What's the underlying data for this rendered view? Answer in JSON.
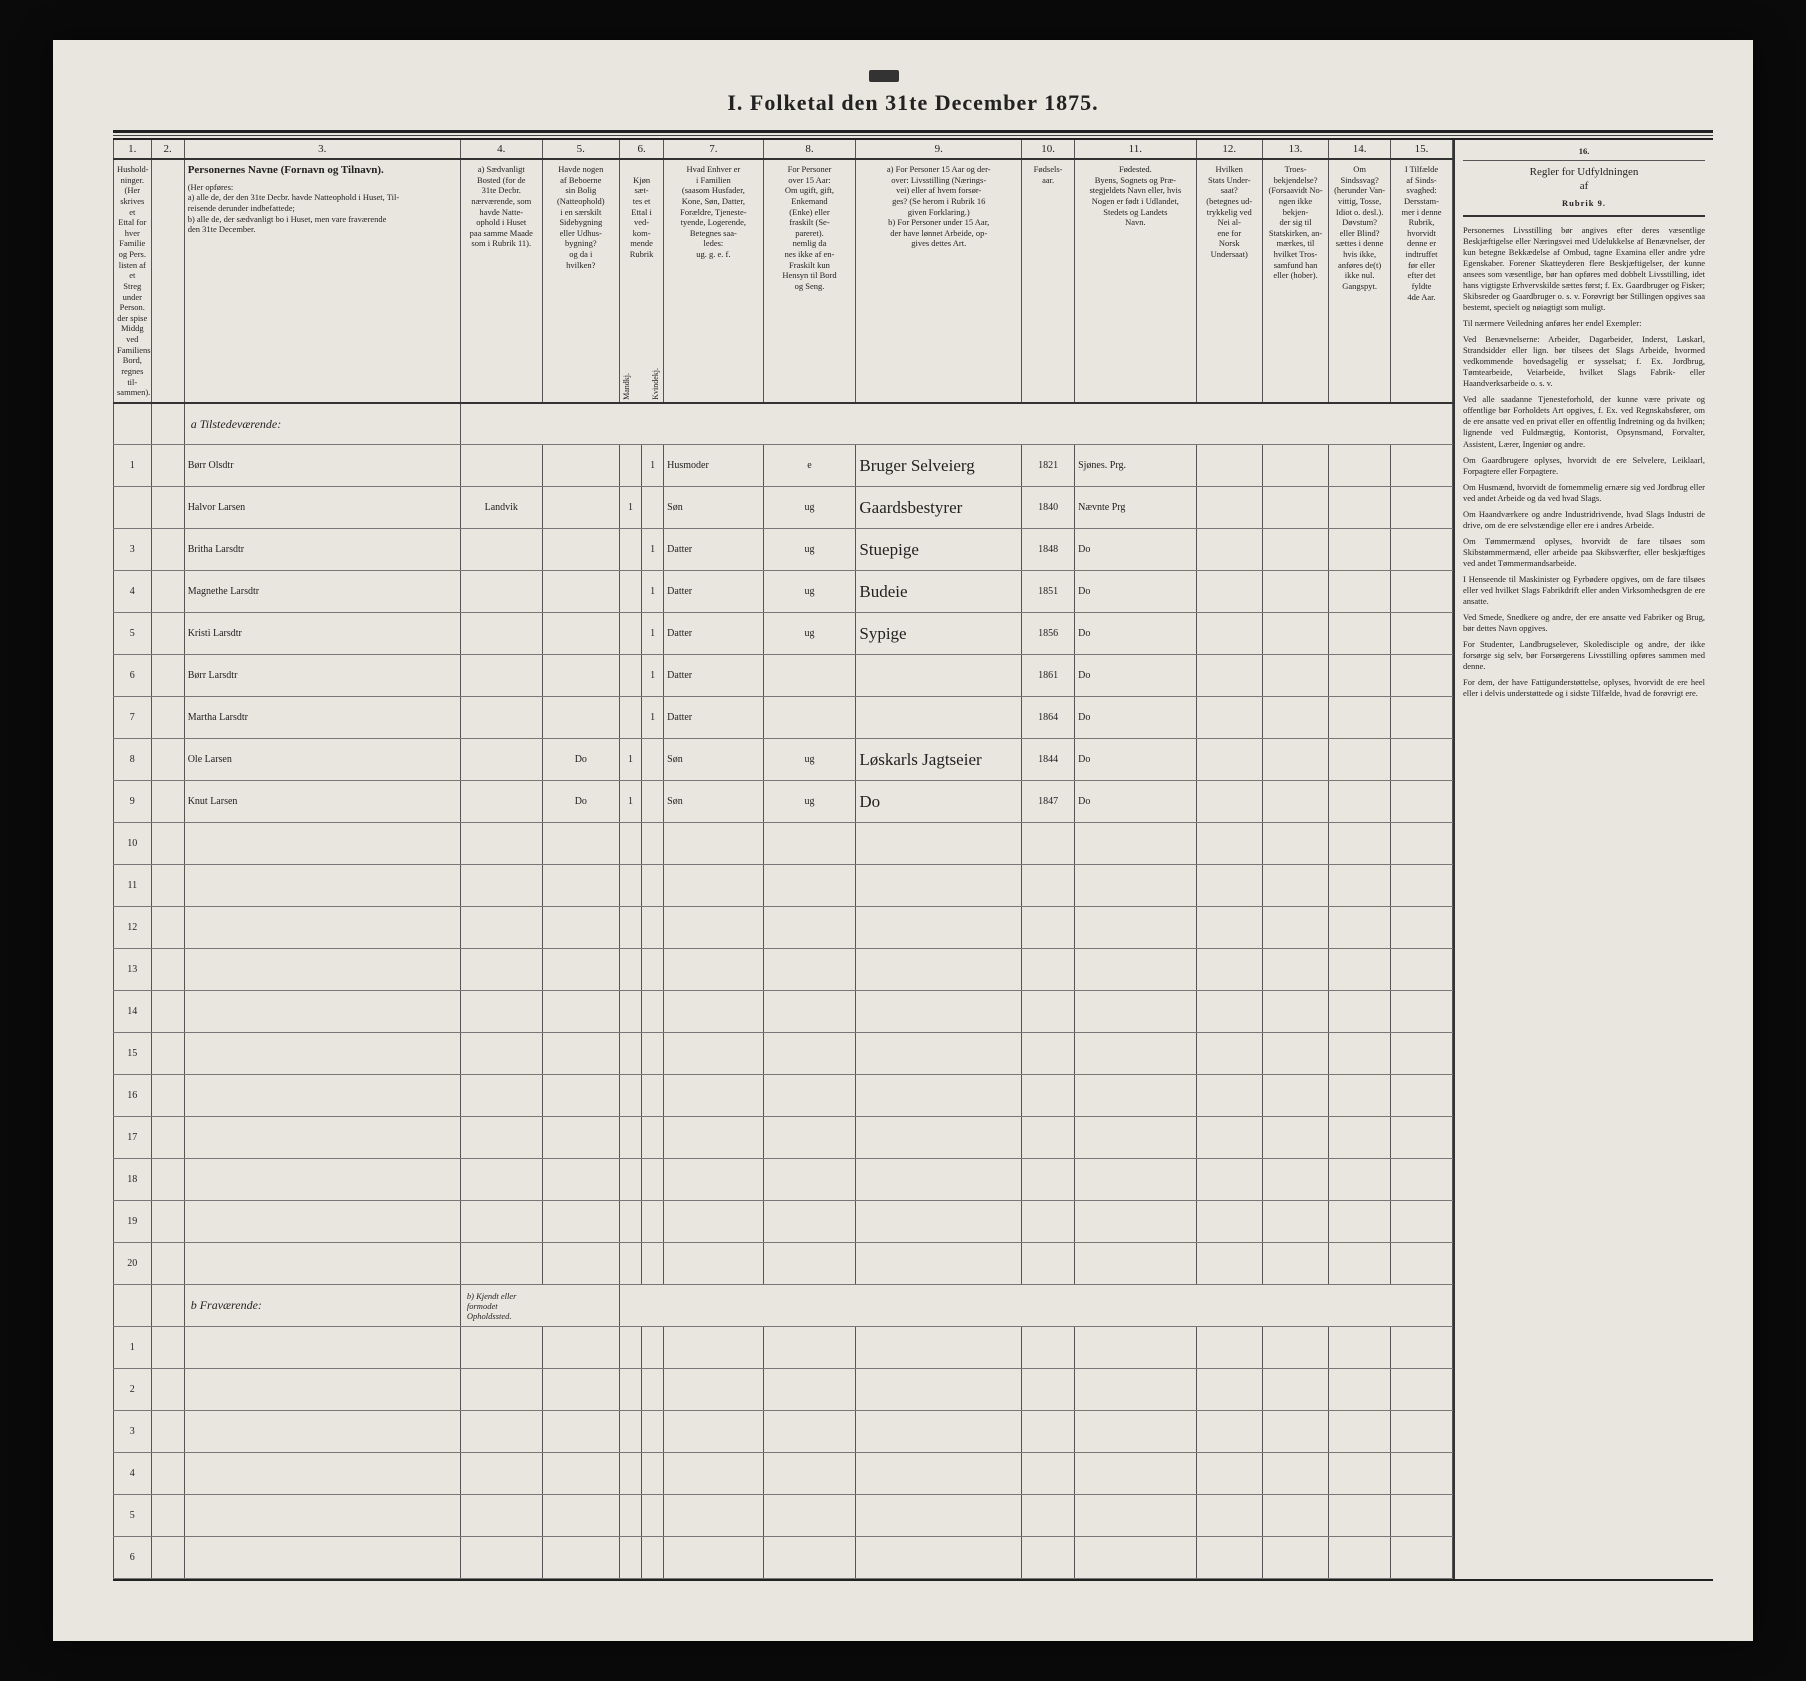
{
  "title": "I. Folketal den 31te December 1875.",
  "colnums": [
    "1.",
    "2.",
    "3.",
    "4.",
    "5.",
    "6.",
    "",
    "7.",
    "8.",
    "9.",
    "10.",
    "11.",
    "12.",
    "13.",
    "14.",
    "15."
  ],
  "headers": {
    "c1": "Hushold-\nninger.\n(Her skrives et\nEttal for hver\nFamilie og Pers.\nlisten af et\nStreg under\nPerson.\nder spise Middg\nved Familiens\nBord, regnes til-\nsammen).",
    "c2": "",
    "c3_title": "Personernes Navne (Fornavn og Tilnavn).",
    "c3_body": "(Her opføres:\na) alle de, der den 31te Decbr. havde Natteophold i Huset, Til-\nreisende derunder indbefattede;\nb) alle de, der sædvanligt bo i Huset, men vare fraværende\nden 31te December.",
    "c4": "a) Sædvanligt\nBosted (for de\n31te Decbr.\nnærværende, som\nhavde Natte-\nophold i Huset\npaa samme Maade\nsom i Rubrik 11).",
    "c5": "Havde nogen\naf Beboerne\nsin Bolig\n(Natteophold)\ni en særskilt\nSidebygning\neller Udhus-\nbygning?\nog da i\nhvilken?",
    "c6": "Kjøn\nsæt-\ntes et\nEttal i\nved-\nkom-\nmende\nRubrik",
    "c6a": "Mandkj.",
    "c6b": "Kvindekj.",
    "c7": "Hvad Enhver er\ni Familien\n(saasom Husfader,\nKone, Søn, Datter,\nForældre, Tjeneste-\ntyende, Logerende,\nBetegnes saa-\nledes:\nug. g. e. f.",
    "c8": "For Personer\nover 15 Aar:\nOm ugift, gift,\nEnkemand\n(Enke) eller\nfraskilt (Se-\npareret).\nnemlig da\nnes ikke af en-\nFraskilt kun\nHensyn til Bord\nog Seng.",
    "c9": "a) For Personer 15 Aar og der-\nover: Livsstilling (Nærings-\nvei) eller af hvem forsør-\nges? (Se herom i Rubrik 16\ngiven Forklaring.)\nb) For Personer under 15 Aar,\nder have lønnet Arbeide, op-\ngives dettes Art.",
    "c10": "Fødsels-\naar.",
    "c11": "Fødested.\nByens, Sognets og Præ-\nstegjeldets Navn eller, hvis\nNogen er født i Udlandet,\nStedets og Landets\nNavn.",
    "c12": "Hvilken\nStats Under-\nsaat?\n(betegnes ud-\ntrykkelig ved\nNei al-\nene for\nNorsk\nUndersaat)",
    "c13": "Troes-\nbekjendelse?\n(Forsaavidt No-\nngen ikke bekjen-\nder sig til\nStatskirken, an-\nmærkes, til\nhvilket Tros-\nsamfund han\neller (hober).",
    "c14": "Om\nSindssvag?\n(herunder Van-\nvittig, Tosse,\nIdiot o. desl.).\nDøvstum?\neller Blind?\nsættes i denne\nhvis ikke,\nanføres de(t)\nikke nul.\nGangspyt.",
    "c15": "I Tilfælde\naf Sinds-\nsvaghed:\nDersstam-\nmer i denne\nRubrik,\nhvorvidt\ndenne er\nindtruffet\nfør eller\nefter det\nfyldte\n4de Aar.",
    "c4b": "b) Kjendt eller\nformodet\nOpholdssted."
  },
  "section_a": "a Tilstedeværende:",
  "section_b": "b Fraværende:",
  "rows_a": [
    {
      "n": "1",
      "name": "Børr Olsdtr",
      "c4": "",
      "c5": "",
      "m": "",
      "k": "1",
      "fam": "Husmoder",
      "stat": "e",
      "liv": "Bruger Selveierg",
      "aar": "1821",
      "sted": "Sjønes. Prg.",
      "u": "",
      "t": "",
      "s": "",
      "i": ""
    },
    {
      "n": "",
      "name": "Halvor Larsen",
      "c4": "Landvik",
      "c5": "",
      "m": "1",
      "k": "",
      "fam": "Søn",
      "stat": "ug",
      "liv": "Gaardsbestyrer",
      "aar": "1840",
      "sted": "Nævnte Prg",
      "u": "",
      "t": "",
      "s": "",
      "i": ""
    },
    {
      "n": "3",
      "name": "Britha Larsdtr",
      "c4": "",
      "c5": "",
      "m": "",
      "k": "1",
      "fam": "Datter",
      "stat": "ug",
      "liv": "Stuepige",
      "aar": "1848",
      "sted": "Do",
      "u": "",
      "t": "",
      "s": "",
      "i": ""
    },
    {
      "n": "4",
      "name": "Magnethe Larsdtr",
      "c4": "",
      "c5": "",
      "m": "",
      "k": "1",
      "fam": "Datter",
      "stat": "ug",
      "liv": "Budeie",
      "aar": "1851",
      "sted": "Do",
      "u": "",
      "t": "",
      "s": "",
      "i": ""
    },
    {
      "n": "5",
      "name": "Kristi Larsdtr",
      "c4": "",
      "c5": "",
      "m": "",
      "k": "1",
      "fam": "Datter",
      "stat": "ug",
      "liv": "Sypige",
      "aar": "1856",
      "sted": "Do",
      "u": "",
      "t": "",
      "s": "",
      "i": ""
    },
    {
      "n": "6",
      "name": "Børr Larsdtr",
      "c4": "",
      "c5": "",
      "m": "",
      "k": "1",
      "fam": "Datter",
      "stat": "",
      "liv": "",
      "aar": "1861",
      "sted": "Do",
      "u": "",
      "t": "",
      "s": "",
      "i": ""
    },
    {
      "n": "7",
      "name": "Martha Larsdtr",
      "c4": "",
      "c5": "",
      "m": "",
      "k": "1",
      "fam": "Datter",
      "stat": "",
      "liv": "",
      "aar": "1864",
      "sted": "Do",
      "u": "",
      "t": "",
      "s": "",
      "i": ""
    },
    {
      "n": "8",
      "name": "Ole Larsen",
      "c4": "",
      "c5": "Do",
      "m": "1",
      "k": "",
      "fam": "Søn",
      "stat": "ug",
      "liv": "Løskarls Jagtseier",
      "aar": "1844",
      "sted": "Do",
      "u": "",
      "t": "",
      "s": "",
      "i": ""
    },
    {
      "n": "9",
      "name": "Knut Larsen",
      "c4": "",
      "c5": "Do",
      "m": "1",
      "k": "",
      "fam": "Søn",
      "stat": "ug",
      "liv": "Do",
      "aar": "1847",
      "sted": "Do",
      "u": "",
      "t": "",
      "s": "",
      "i": ""
    }
  ],
  "blank_a": [
    "10",
    "11",
    "12",
    "13",
    "14",
    "15",
    "16",
    "17",
    "18",
    "19",
    "20"
  ],
  "rows_b": [
    "1",
    "2",
    "3",
    "4",
    "5",
    "6"
  ],
  "side": {
    "head": "Regler for Udfyldningen\naf",
    "rubrik": "Rubrik 9.",
    "paras": [
      "Personernes Livsstilling bør angives efter deres væsentlige Beskjæftigelse eller Næringsvei med Udelukkelse af Benævnelser, der kun betegne Bekkædelse af Ombud, tagne Examina eller andre ydre Egenskaber. Forener Skatteyderen flere Beskjæftigelser, der kunne ansees som væsentlige, bør han opføres med dobbelt Livsstilling, idet hans vigtigste Erhvervskilde sættes først; f. Ex. Gaardbruger og Fisker; Skibsreder og Gaardbruger o. s. v. Forøvrigt bør Stillingen opgives saa bestemt, specielt og nøiagtigt som muligt.",
      "Til nærmere Veiledning anføres her endel Exempler:",
      "Ved Benævnelserne: Arbeider, Dagarbeider, Inderst, Løskarl, Strandsidder eller lign. bør tilsees det Slags Arbeide, hvormed vedkommende hovedsagelig er sysselsat; f. Ex. Jordbrug, Tømtearbeide, Veiarbeide, hvilket Slags Fabrik- eller Haandverksarbeide o. s. v.",
      "Ved alle saadanne Tjenesteforhold, der kunne være private og offentlige bør Forholdets Art opgives, f. Ex. ved Regnskabsfører, om de ere ansatte ved en privat eller en offentlig Indretning og da hvilken; lignende ved Fuldmægtig, Kontorist, Opsynsmand, Forvalter, Assistent, Lærer, Ingeniør og andre.",
      "Om Gaardbrugere oplyses, hvorvidt de ere Selvelere, Leiklaarl, Forpagtere eller Forpagtere.",
      "Om Husmænd, hvorvidt de fornemmelig ernære sig ved Jordbrug eller ved andet Arbeide og da ved hvad Slags.",
      "Om Haandværkere og andre Industridrivende, hvad Slags Industri de drive, om de ere selvstændige eller ere i andres Arbeide.",
      "Om Tømmermænd oplyses, hvorvidt de fare tilsøes som Skibstømmermænd, eller arbeide paa Skibsværfter, eller beskjæftiges ved andet Tømmermandsarbeide.",
      "I Henseende til Maskinister og Fyrbødere opgives, om de fare tilsøes eller ved hvilket Slags Fabrikdrift eller anden Virksomhedsgren de ere ansatte.",
      "Ved Smede, Snedkere og andre, der ere ansatte ved Fabriker og Brug, bør dettes Navn opgives.",
      "For Studenter, Landbrugselever, Skoledisciple og andre, der ikke forsørge sig selv, bør Forsørgerens Livsstilling opføres sammen med denne.",
      "For dem, der have Fattigunderstøttelse, oplyses, hvorvidt de ere heel eller i delvis understøttede og i sidste Tilfælde, hvad de forøvrigt ere."
    ]
  },
  "col16": "16."
}
